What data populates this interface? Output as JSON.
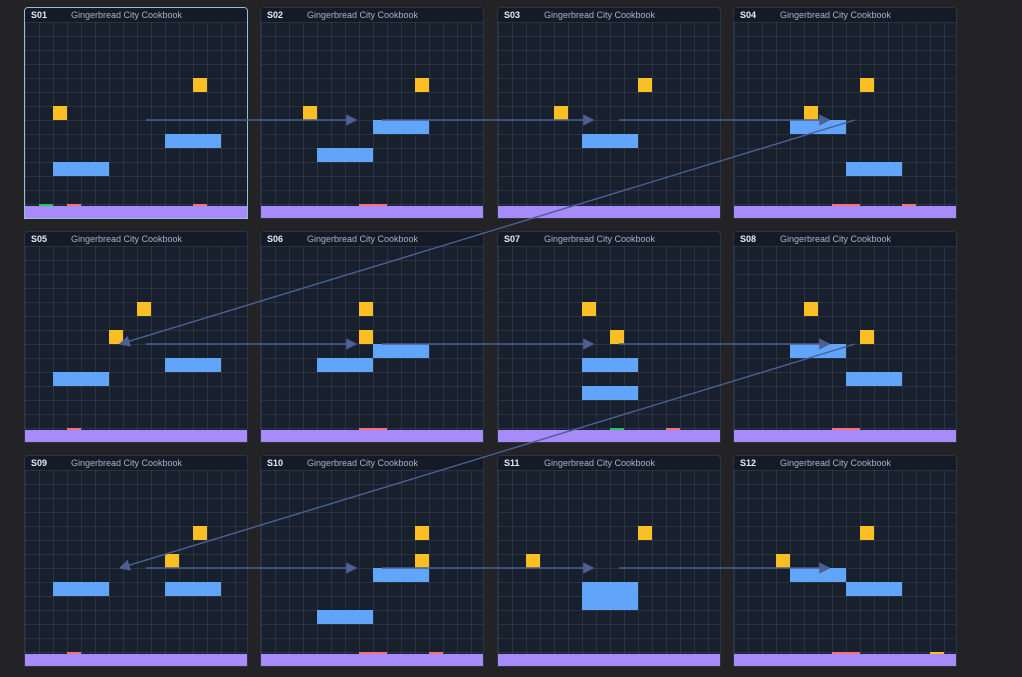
{
  "colors": {
    "coin": "#fbbf24",
    "platform": "#60a5fa",
    "hazard": "#f87171",
    "start": "#22c55e",
    "ground": "#a78bfa",
    "link": "#4c5f94"
  },
  "panels": [
    {
      "id": "S01",
      "title": "Gingerbread City Cookbook",
      "selected": true,
      "tiles": [
        {
          "kind": "coin",
          "c": 12,
          "r": 4
        },
        {
          "kind": "coin",
          "c": 2,
          "r": 6
        },
        {
          "kind": "platform",
          "c": 10,
          "r": 8,
          "w": 4,
          "h": 1
        },
        {
          "kind": "platform",
          "c": 2,
          "r": 10,
          "w": 4,
          "h": 1
        },
        {
          "kind": "start",
          "c": 1,
          "r": 13
        },
        {
          "kind": "hazard",
          "c": 3,
          "r": 13
        },
        {
          "kind": "hazard",
          "c": 12,
          "r": 13
        }
      ]
    },
    {
      "id": "S02",
      "title": "Gingerbread City Cookbook",
      "tiles": [
        {
          "kind": "coin",
          "c": 11,
          "r": 4
        },
        {
          "kind": "coin",
          "c": 3,
          "r": 6
        },
        {
          "kind": "platform",
          "c": 8,
          "r": 7,
          "w": 4,
          "h": 1
        },
        {
          "kind": "platform",
          "c": 4,
          "r": 9,
          "w": 4,
          "h": 1
        },
        {
          "kind": "hazard",
          "c": 7,
          "r": 13,
          "w": 2
        }
      ]
    },
    {
      "id": "S03",
      "title": "Gingerbread City Cookbook",
      "tiles": [
        {
          "kind": "coin",
          "c": 10,
          "r": 4
        },
        {
          "kind": "coin",
          "c": 4,
          "r": 6
        },
        {
          "kind": "platform",
          "c": 6,
          "r": 8,
          "w": 4,
          "h": 1
        }
      ]
    },
    {
      "id": "S04",
      "title": "Gingerbread City Cookbook",
      "tiles": [
        {
          "kind": "coin",
          "c": 9,
          "r": 4
        },
        {
          "kind": "coin",
          "c": 5,
          "r": 6
        },
        {
          "kind": "platform",
          "c": 4,
          "r": 7,
          "w": 4,
          "h": 1
        },
        {
          "kind": "platform",
          "c": 8,
          "r": 10,
          "w": 4,
          "h": 1
        },
        {
          "kind": "hazard",
          "c": 7,
          "r": 13,
          "w": 2
        },
        {
          "kind": "hazard",
          "c": 12,
          "r": 13
        }
      ]
    },
    {
      "id": "S05",
      "title": "Gingerbread City Cookbook",
      "tiles": [
        {
          "kind": "coin",
          "c": 8,
          "r": 4
        },
        {
          "kind": "coin",
          "c": 6,
          "r": 6
        },
        {
          "kind": "platform",
          "c": 10,
          "r": 8,
          "w": 4,
          "h": 1
        },
        {
          "kind": "platform",
          "c": 2,
          "r": 9,
          "w": 4,
          "h": 1
        },
        {
          "kind": "hazard",
          "c": 3,
          "r": 13
        }
      ]
    },
    {
      "id": "S06",
      "title": "Gingerbread City Cookbook",
      "tiles": [
        {
          "kind": "coin",
          "c": 7,
          "r": 4
        },
        {
          "kind": "coin",
          "c": 7,
          "r": 6
        },
        {
          "kind": "platform",
          "c": 8,
          "r": 7,
          "w": 4,
          "h": 1
        },
        {
          "kind": "platform",
          "c": 4,
          "r": 8,
          "w": 4,
          "h": 1
        },
        {
          "kind": "hazard",
          "c": 7,
          "r": 13,
          "w": 2
        }
      ]
    },
    {
      "id": "S07",
      "title": "Gingerbread City Cookbook",
      "tiles": [
        {
          "kind": "coin",
          "c": 6,
          "r": 4
        },
        {
          "kind": "coin",
          "c": 8,
          "r": 6
        },
        {
          "kind": "platform",
          "c": 6,
          "r": 8,
          "w": 4,
          "h": 1
        },
        {
          "kind": "platform",
          "c": 6,
          "r": 10,
          "w": 4,
          "h": 1
        },
        {
          "kind": "start",
          "c": 8,
          "r": 13
        },
        {
          "kind": "hazard",
          "c": 12,
          "r": 13
        }
      ]
    },
    {
      "id": "S08",
      "title": "Gingerbread City Cookbook",
      "tiles": [
        {
          "kind": "coin",
          "c": 5,
          "r": 4
        },
        {
          "kind": "coin",
          "c": 9,
          "r": 6
        },
        {
          "kind": "platform",
          "c": 4,
          "r": 7,
          "w": 4,
          "h": 1
        },
        {
          "kind": "platform",
          "c": 8,
          "r": 9,
          "w": 4,
          "h": 1
        },
        {
          "kind": "hazard",
          "c": 7,
          "r": 13,
          "w": 2
        }
      ]
    },
    {
      "id": "S09",
      "title": "Gingerbread City Cookbook",
      "tiles": [
        {
          "kind": "coin",
          "c": 12,
          "r": 4
        },
        {
          "kind": "coin",
          "c": 10,
          "r": 6
        },
        {
          "kind": "platform",
          "c": 2,
          "r": 8,
          "w": 4,
          "h": 1
        },
        {
          "kind": "platform",
          "c": 10,
          "r": 8,
          "w": 4,
          "h": 1
        },
        {
          "kind": "hazard",
          "c": 3,
          "r": 13
        }
      ]
    },
    {
      "id": "S10",
      "title": "Gingerbread City Cookbook",
      "tiles": [
        {
          "kind": "coin",
          "c": 11,
          "r": 4
        },
        {
          "kind": "coin",
          "c": 11,
          "r": 6
        },
        {
          "kind": "platform",
          "c": 8,
          "r": 7,
          "w": 4,
          "h": 1
        },
        {
          "kind": "platform",
          "c": 4,
          "r": 10,
          "w": 4,
          "h": 1
        },
        {
          "kind": "hazard",
          "c": 7,
          "r": 13,
          "w": 2
        },
        {
          "kind": "hazard",
          "c": 12,
          "r": 13
        }
      ]
    },
    {
      "id": "S11",
      "title": "Gingerbread City Cookbook",
      "tiles": [
        {
          "kind": "coin",
          "c": 10,
          "r": 4
        },
        {
          "kind": "coin",
          "c": 2,
          "r": 6
        },
        {
          "kind": "platform",
          "c": 6,
          "r": 8,
          "w": 4,
          "h": 2
        }
      ]
    },
    {
      "id": "S12",
      "title": "Gingerbread City Cookbook",
      "tiles": [
        {
          "kind": "coin",
          "c": 9,
          "r": 4
        },
        {
          "kind": "coin",
          "c": 3,
          "r": 6
        },
        {
          "kind": "platform",
          "c": 4,
          "r": 7,
          "w": 4,
          "h": 1
        },
        {
          "kind": "platform",
          "c": 8,
          "r": 8,
          "w": 4,
          "h": 1
        },
        {
          "kind": "hazard",
          "c": 7,
          "r": 13,
          "w": 2
        },
        {
          "kind": "coin",
          "c": 14,
          "r": 13
        }
      ]
    }
  ],
  "links": [
    {
      "from": "S01",
      "to": "S02"
    },
    {
      "from": "S02",
      "to": "S03"
    },
    {
      "from": "S03",
      "to": "S04"
    },
    {
      "from": "S04",
      "to": "S05"
    },
    {
      "from": "S05",
      "to": "S06"
    },
    {
      "from": "S06",
      "to": "S07"
    },
    {
      "from": "S07",
      "to": "S08"
    },
    {
      "from": "S08",
      "to": "S09"
    },
    {
      "from": "S09",
      "to": "S10"
    },
    {
      "from": "S10",
      "to": "S11"
    },
    {
      "from": "S11",
      "to": "S12"
    }
  ]
}
